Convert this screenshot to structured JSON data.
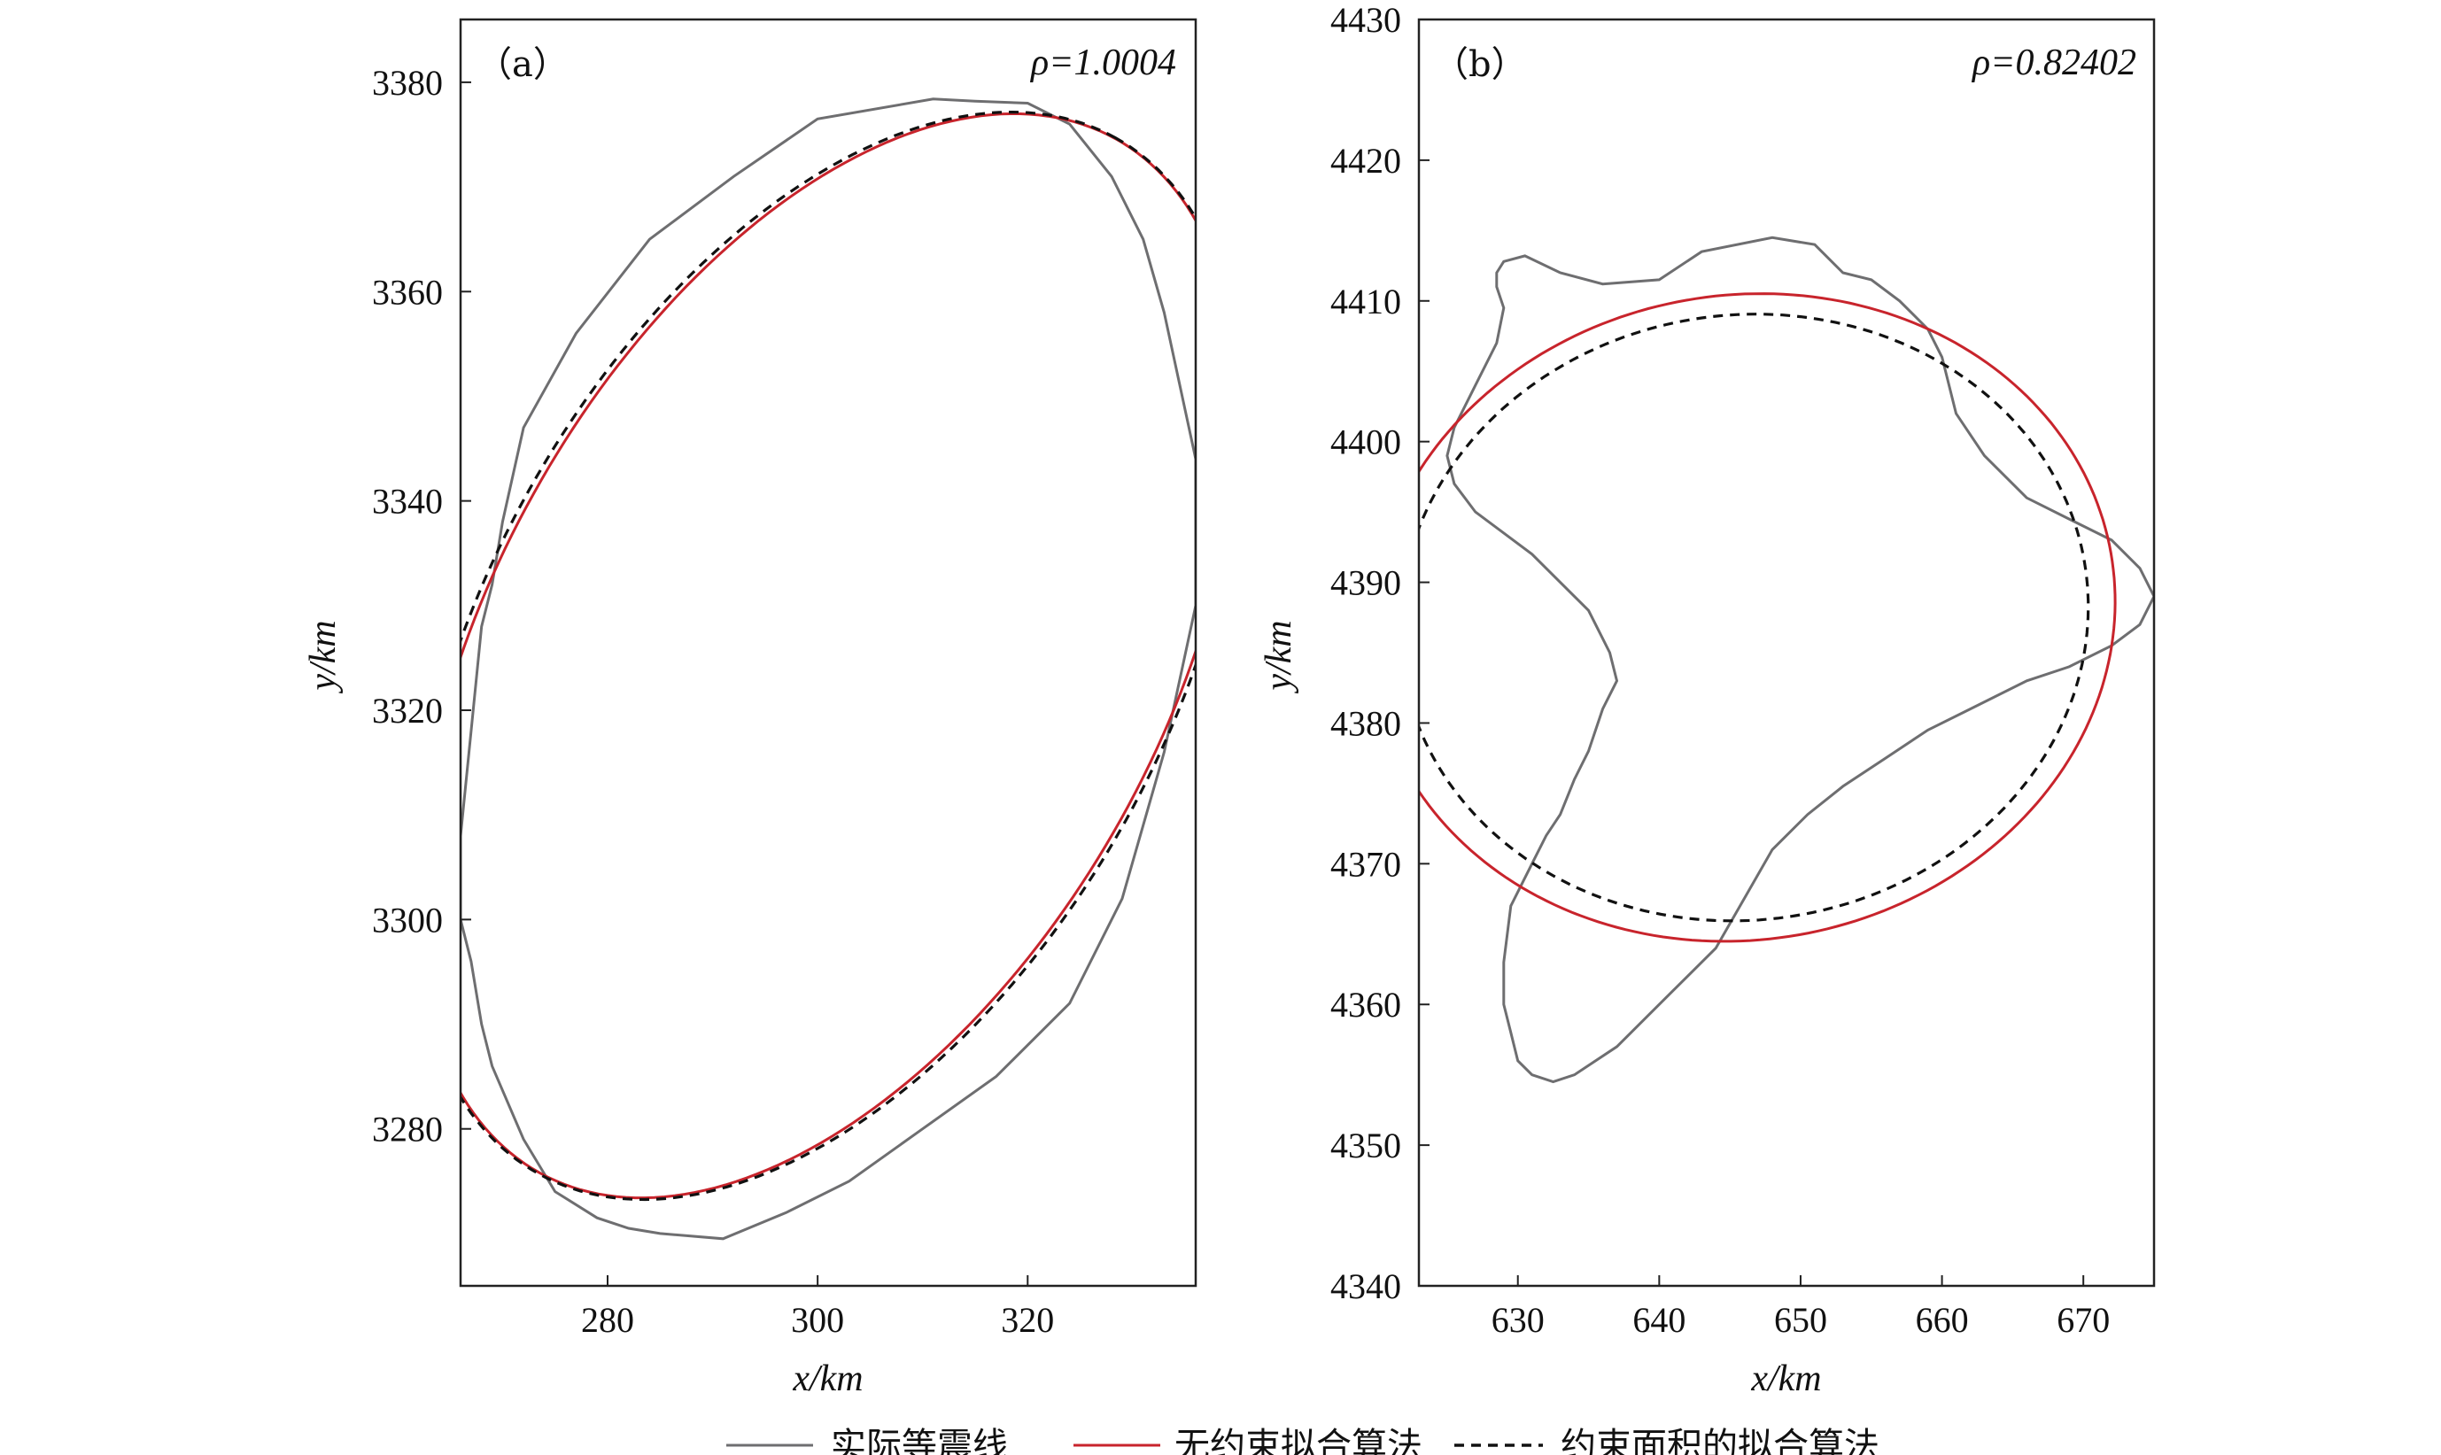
{
  "legend": {
    "actual": "实际等震线",
    "unconstrained": "无约束拟合算法",
    "constrained": "约束面积的拟合算法"
  },
  "colors": {
    "actual": "#6e6e70",
    "unconstrained": "#c8242c",
    "constrained": "#111111"
  },
  "chart_data": [
    {
      "type": "line",
      "panel": "（a）",
      "rho": "ρ=1.0004",
      "xlabel": "x/km",
      "ylabel": "y/km",
      "xlim": [
        266,
        336
      ],
      "ylim": [
        3265,
        3386
      ],
      "xticks": [
        280,
        300,
        320
      ],
      "yticks": [
        3280,
        3300,
        3320,
        3340,
        3360,
        3380
      ],
      "series": [
        {
          "name": "实际等震线",
          "style": "solid-gray",
          "x": [
            285,
            291,
            297,
            303,
            310,
            317,
            324,
            329,
            333,
            336,
            336,
            333,
            331,
            328,
            324,
            320,
            315,
            311,
            300,
            292,
            284,
            277,
            272,
            270,
            269,
            268,
            267,
            266,
            266,
            267,
            268,
            269,
            272,
            275,
            279,
            282,
            285
          ],
          "y": [
            3270,
            3269.5,
            3272,
            3275,
            3280,
            3285,
            3292,
            3302,
            3316,
            3330,
            3344,
            3358,
            3365,
            3371,
            3376,
            3378,
            3378.2,
            3378.4,
            3376.5,
            3371,
            3365,
            3356,
            3347,
            3338,
            3332,
            3328,
            3318,
            3308,
            3300,
            3296,
            3290,
            3286,
            3279,
            3274,
            3271.5,
            3270.5,
            3270
          ]
        },
        {
          "name": "无约束拟合算法",
          "style": "solid-red",
          "ellipse": {
            "cx": 300.95,
            "cy": 3325.2,
            "a": 56.5,
            "b": 32.0,
            "angle_deg": 61
          }
        },
        {
          "name": "约束面积的拟合算法",
          "style": "dashed-black",
          "ellipse": {
            "cx": 300.9,
            "cy": 3325.2,
            "a": 56.6,
            "b": 32.5,
            "angle_deg": 61
          }
        }
      ]
    },
    {
      "type": "line",
      "panel": "（b）",
      "rho": "ρ=0.82402",
      "xlabel": "x/km",
      "ylabel": "y/km",
      "xlim": [
        623,
        675
      ],
      "ylim": [
        4340,
        4430
      ],
      "xticks": [
        630,
        640,
        650,
        660,
        670
      ],
      "yticks": [
        4340,
        4350,
        4360,
        4370,
        4380,
        4390,
        4400,
        4410,
        4420,
        4430
      ],
      "series": [
        {
          "name": "实际等震线",
          "style": "solid-gray",
          "x": [
            630.5,
            633,
            636,
            640,
            643,
            648,
            651,
            653,
            655,
            657,
            659,
            660,
            661,
            663,
            666,
            669,
            672,
            674,
            675,
            674,
            672,
            669,
            666,
            662,
            659,
            656,
            653,
            650.5,
            648,
            646,
            644,
            641,
            637,
            634,
            632.5,
            631,
            630,
            629.5,
            629,
            629,
            629.5,
            631,
            632,
            633,
            634,
            635,
            636,
            637,
            636.5,
            636,
            635,
            633,
            631,
            629,
            627,
            625.5,
            625,
            625.5,
            627,
            628.5,
            629,
            628.5,
            628.5,
            629,
            630.5
          ],
          "y": [
            4413.2,
            4412,
            4411.2,
            4411.5,
            4413.5,
            4414.5,
            4414,
            4412,
            4411.5,
            4410,
            4408,
            4406,
            4402,
            4399,
            4396,
            4394.5,
            4393,
            4391,
            4389,
            4387,
            4385.5,
            4384,
            4383,
            4381,
            4379.5,
            4377.5,
            4375.5,
            4373.5,
            4371,
            4367.5,
            4364,
            4361,
            4357,
            4355,
            4354.5,
            4355,
            4356,
            4358,
            4360,
            4363,
            4367,
            4370,
            4372,
            4373.5,
            4376,
            4378,
            4381,
            4383,
            4385,
            4386,
            4388,
            4390,
            4392,
            4393.5,
            4395,
            4397,
            4399,
            4401,
            4404,
            4407,
            4409.5,
            4411,
            4412,
            4412.8,
            4413.2
          ]
        },
        {
          "name": "无约束拟合算法",
          "style": "solid-red",
          "ellipse": {
            "cx": 645.9,
            "cy": 4387.5,
            "a": 26.45,
            "b": 22.9,
            "angle_deg": 10
          }
        },
        {
          "name": "约束面积的拟合算法",
          "style": "dashed-black",
          "ellipse": {
            "cx": 646,
            "cy": 4387.5,
            "a": 24.4,
            "b": 21.5,
            "angle_deg": 8
          }
        }
      ]
    }
  ]
}
